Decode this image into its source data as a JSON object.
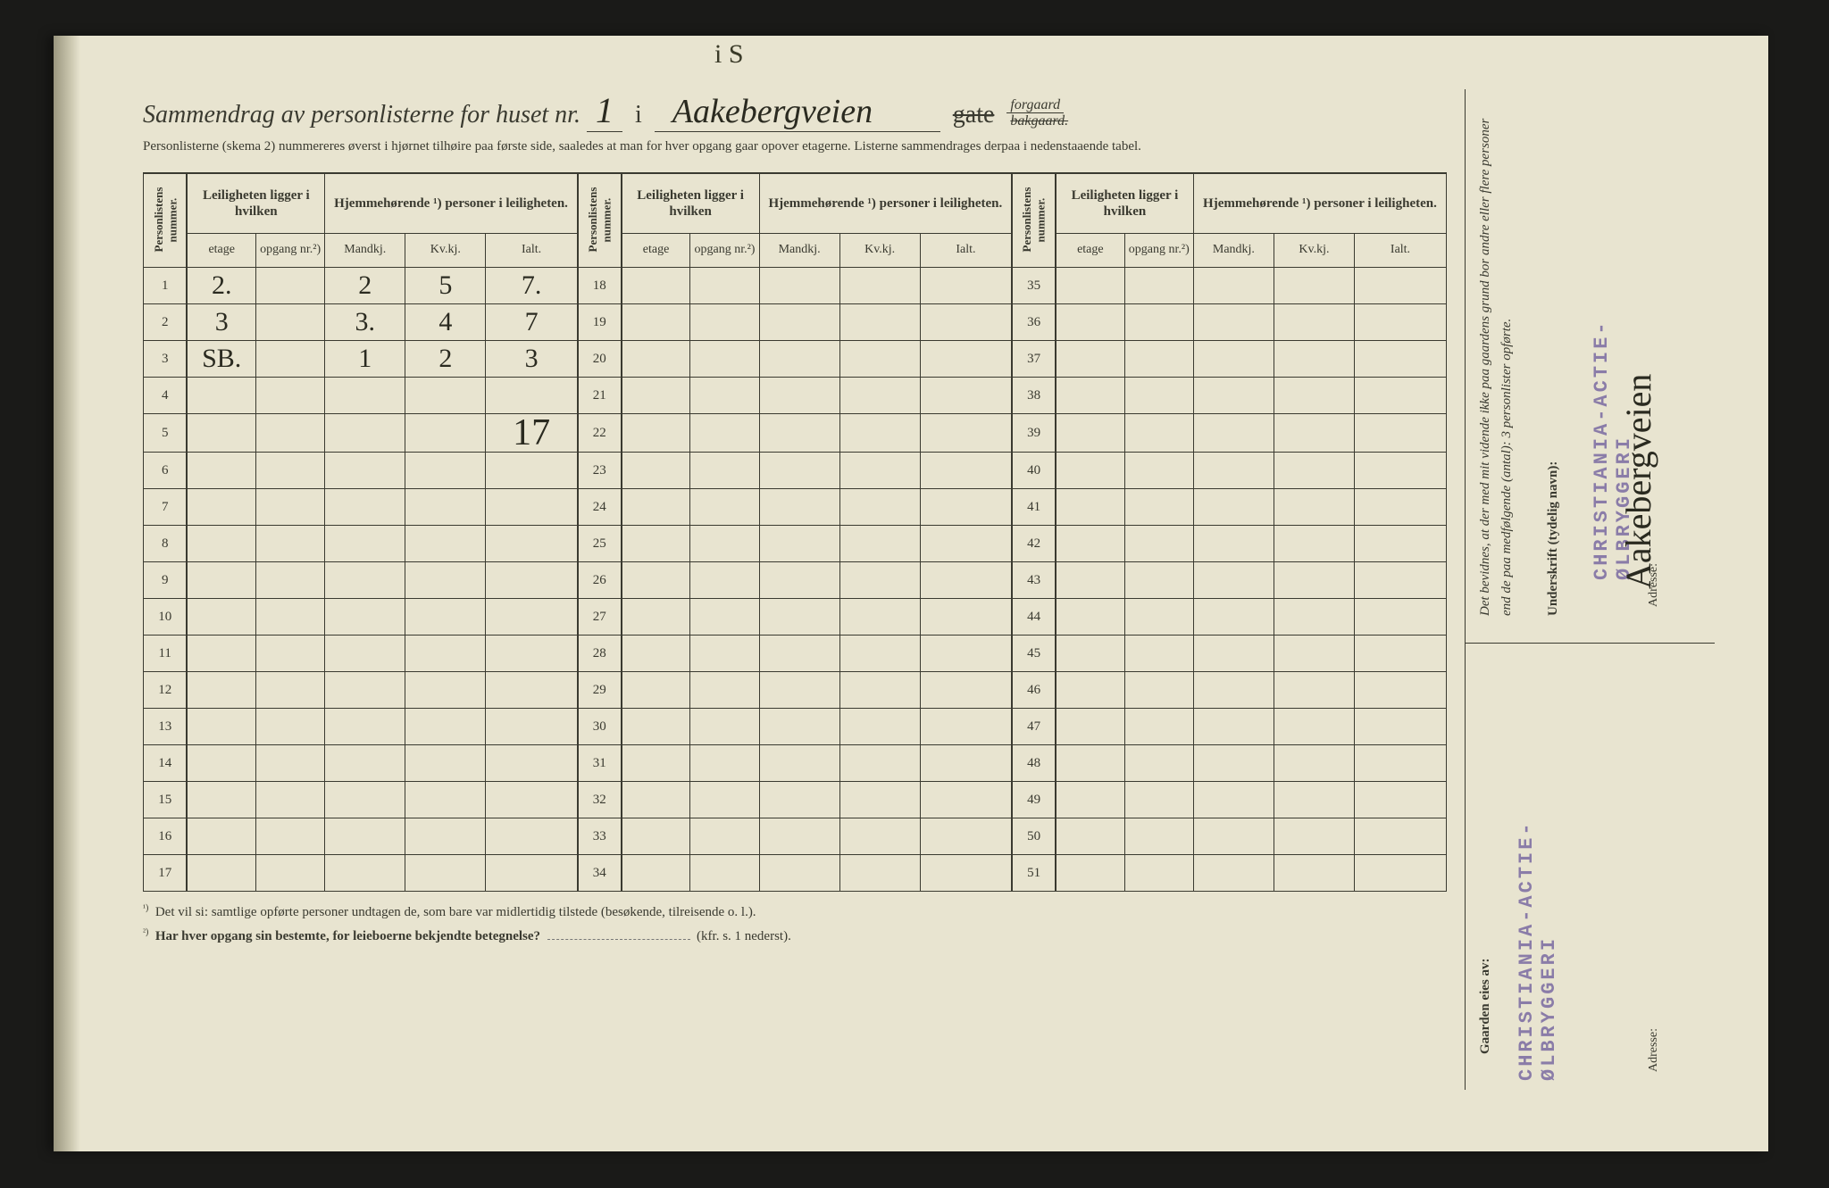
{
  "top_scribble": "i S",
  "title": {
    "prefix": "Sammendrag av personlisterne for huset nr.",
    "house_no": "1",
    "sep": "i",
    "street": "Aakebergveien",
    "gate_label": "gate",
    "gate_struck": true,
    "forgaard": "forgaard",
    "bakgaard": "bakgaard.",
    "bakgaard_struck": true
  },
  "subline": "Personlisterne (skema 2) nummereres øverst i hjørnet tilhøire paa første side, saaledes at man for hver opgang gaar opover etagerne.  Listerne sammendrages derpaa i nedenstaaende tabel.",
  "headers": {
    "personlistens": "Personlistens nummer.",
    "leiligheten": "Leiligheten ligger i hvilken",
    "hjemme": "Hjemmehørende ¹) personer i leiligheten.",
    "etage": "etage",
    "opgang": "opgang nr.²)",
    "mandkj": "Mandkj.",
    "kvkj": "Kv.kj.",
    "ialt": "Ialt."
  },
  "row_numbers": {
    "block1": [
      "1",
      "2",
      "3",
      "4",
      "5",
      "6",
      "7",
      "8",
      "9",
      "10",
      "11",
      "12",
      "13",
      "14",
      "15",
      "16",
      "17"
    ],
    "block2": [
      "18",
      "19",
      "20",
      "21",
      "22",
      "23",
      "24",
      "25",
      "26",
      "27",
      "28",
      "29",
      "30",
      "31",
      "32",
      "33",
      "34"
    ],
    "block3": [
      "35",
      "36",
      "37",
      "38",
      "39",
      "40",
      "41",
      "42",
      "43",
      "44",
      "45",
      "46",
      "47",
      "48",
      "49",
      "50",
      "51"
    ]
  },
  "data_rows": {
    "1": {
      "etage": "2.",
      "opgang": "",
      "mandkj": "2",
      "kvkj": "5",
      "ialt": "7."
    },
    "2": {
      "etage": "3",
      "opgang": "",
      "mandkj": "3.",
      "kvkj": "4",
      "ialt": "7"
    },
    "3": {
      "etage": "SB.",
      "opgang": "",
      "mandkj": "1",
      "kvkj": "2",
      "ialt": "3"
    }
  },
  "block1_total": "17",
  "footnotes": {
    "f1_sup": "¹)",
    "f1": "Det vil si: samtlige opførte personer undtagen de, som bare var midlertidig tilstede (besøkende, tilreisende o. l.).",
    "f2_sup": "²)",
    "f2": "Har hver opgang sin bestemte, for leieboerne bekjendte betegnelse?",
    "f2_tail": "(kfr. s. 1 nederst)."
  },
  "sidebar": {
    "bevidnes": "Det bevidnes, at der med mit vidende ikke paa gaardens grund bor andre eller flere personer end de paa medfølgende (antal): 3 personlister opførte.",
    "underskrift": "Underskrift (tydelig navn):",
    "stamp": "CHRISTIANIA-ACTIE-ØLBRYGGERI",
    "signature": "Aakebergveien",
    "adresse": "Adresse:",
    "eies": "Gaarden eies av:"
  },
  "colors": {
    "paper": "#e8e4d0",
    "ink": "#3a3a30",
    "hand": "#2a2a20",
    "stamp": "#8a7ca8",
    "bg": "#1a1a18"
  }
}
